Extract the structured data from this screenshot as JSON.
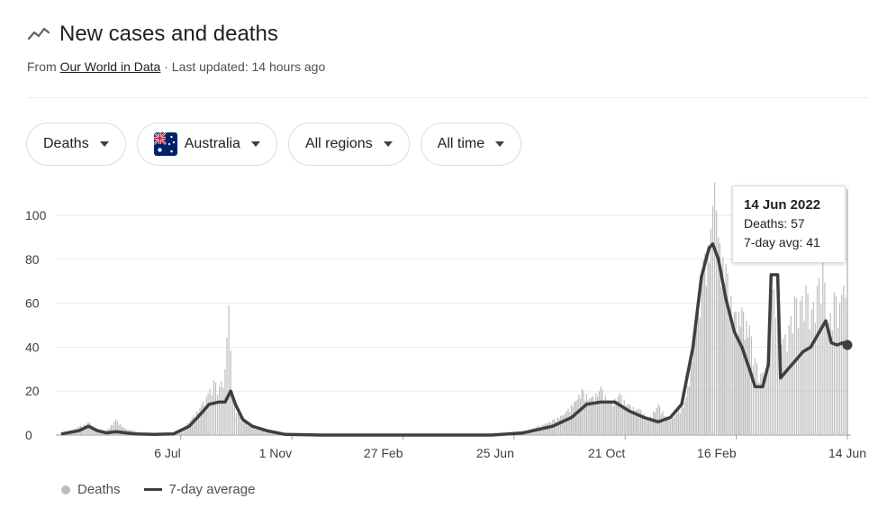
{
  "header": {
    "title": "New cases and deaths",
    "source_prefix": "From",
    "source_name": "Our World in Data",
    "updated": "· Last updated: 14 hours ago",
    "icon": "trending-line-icon"
  },
  "filters": [
    {
      "label": "Deaths"
    },
    {
      "label": "Australia",
      "icon": "australia-flag-icon"
    },
    {
      "label": "All regions"
    },
    {
      "label": "All time"
    }
  ],
  "tooltip": {
    "date": "14 Jun 2022",
    "deaths": "Deaths: 57",
    "avg": "7-day avg: 41"
  },
  "legend": {
    "bars": "Deaths",
    "line": "7-day average"
  },
  "colors": {
    "bars": "#bdbdbd",
    "line": "#3c4043",
    "grid": "#ebebeb"
  },
  "chart_data": {
    "type": "bar",
    "title": "",
    "xlabel": "",
    "ylabel": "",
    "ylim": [
      0,
      114
    ],
    "y_ticks": [
      "0",
      "20",
      "40",
      "60",
      "80",
      "100"
    ],
    "x_ticks": [
      "6 Jul",
      "1 Nov",
      "27 Feb",
      "25 Jun",
      "21 Oct",
      "16 Feb",
      "14 Jun"
    ],
    "x_range": [
      "2020-03-01",
      "2022-06-14"
    ],
    "grid": true,
    "legend_position": "bottom-left",
    "series": [
      {
        "name": "Deaths",
        "type": "bar",
        "points": [
          [
            "2020-03-01",
            1
          ],
          [
            "2020-03-10",
            2
          ],
          [
            "2020-03-20",
            4
          ],
          [
            "2020-03-30",
            6
          ],
          [
            "2020-04-08",
            3
          ],
          [
            "2020-04-18",
            2
          ],
          [
            "2020-04-28",
            7
          ],
          [
            "2020-05-08",
            3
          ],
          [
            "2020-05-18",
            2
          ],
          [
            "2020-05-28",
            0
          ],
          [
            "2020-06-08",
            1
          ],
          [
            "2020-06-18",
            0
          ],
          [
            "2020-06-28",
            1
          ],
          [
            "2020-07-08",
            3
          ],
          [
            "2020-07-18",
            8
          ],
          [
            "2020-07-28",
            14
          ],
          [
            "2020-08-04",
            19
          ],
          [
            "2020-08-10",
            25
          ],
          [
            "2020-08-16",
            22
          ],
          [
            "2020-08-22",
            30
          ],
          [
            "2020-08-26",
            59
          ],
          [
            "2020-08-30",
            18
          ],
          [
            "2020-09-05",
            10
          ],
          [
            "2020-09-12",
            6
          ],
          [
            "2020-09-20",
            4
          ],
          [
            "2020-09-30",
            2
          ],
          [
            "2020-10-10",
            1
          ],
          [
            "2020-10-25",
            0
          ],
          [
            "2021-06-01",
            0
          ],
          [
            "2021-07-05",
            2
          ],
          [
            "2021-07-20",
            4
          ],
          [
            "2021-08-05",
            7
          ],
          [
            "2021-08-20",
            11
          ],
          [
            "2021-09-05",
            21
          ],
          [
            "2021-09-15",
            17
          ],
          [
            "2021-09-25",
            22
          ],
          [
            "2021-10-05",
            15
          ],
          [
            "2021-10-15",
            19
          ],
          [
            "2021-10-25",
            14
          ],
          [
            "2021-11-05",
            12
          ],
          [
            "2021-11-15",
            8
          ],
          [
            "2021-11-25",
            14
          ],
          [
            "2021-12-05",
            8
          ],
          [
            "2021-12-15",
            10
          ],
          [
            "2021-12-25",
            17
          ],
          [
            "2022-01-05",
            55
          ],
          [
            "2022-01-12",
            80
          ],
          [
            "2022-01-20",
            94
          ],
          [
            "2022-01-24",
            115
          ],
          [
            "2022-01-28",
            90
          ],
          [
            "2022-02-05",
            78
          ],
          [
            "2022-02-14",
            56
          ],
          [
            "2022-02-22",
            58
          ],
          [
            "2022-03-02",
            50
          ],
          [
            "2022-03-08",
            35
          ],
          [
            "2022-03-14",
            28
          ],
          [
            "2022-03-20",
            30
          ],
          [
            "2022-03-26",
            66
          ],
          [
            "2022-04-01",
            68
          ],
          [
            "2022-04-07",
            44
          ],
          [
            "2022-04-13",
            50
          ],
          [
            "2022-04-19",
            63
          ],
          [
            "2022-04-25",
            61
          ],
          [
            "2022-05-01",
            68
          ],
          [
            "2022-05-07",
            57
          ],
          [
            "2022-05-13",
            68
          ],
          [
            "2022-05-19",
            79
          ],
          [
            "2022-05-25",
            51
          ],
          [
            "2022-05-31",
            65
          ],
          [
            "2022-06-06",
            60
          ],
          [
            "2022-06-10",
            68
          ],
          [
            "2022-06-14",
            57
          ]
        ]
      },
      {
        "name": "7-day average",
        "type": "line",
        "points": [
          [
            "2020-03-01",
            0.5
          ],
          [
            "2020-03-20",
            2
          ],
          [
            "2020-03-30",
            4
          ],
          [
            "2020-04-08",
            2
          ],
          [
            "2020-04-18",
            1
          ],
          [
            "2020-04-28",
            1.5
          ],
          [
            "2020-05-18",
            0.5
          ],
          [
            "2020-06-08",
            0.3
          ],
          [
            "2020-06-28",
            0.5
          ],
          [
            "2020-07-15",
            4
          ],
          [
            "2020-07-28",
            10
          ],
          [
            "2020-08-05",
            14
          ],
          [
            "2020-08-15",
            15
          ],
          [
            "2020-08-22",
            15
          ],
          [
            "2020-08-28",
            20
          ],
          [
            "2020-09-02",
            14
          ],
          [
            "2020-09-10",
            7
          ],
          [
            "2020-09-20",
            4
          ],
          [
            "2020-10-05",
            2
          ],
          [
            "2020-10-25",
            0.3
          ],
          [
            "2020-12-01",
            0
          ],
          [
            "2021-06-01",
            0
          ],
          [
            "2021-07-05",
            1
          ],
          [
            "2021-08-05",
            4
          ],
          [
            "2021-08-25",
            8
          ],
          [
            "2021-09-10",
            14
          ],
          [
            "2021-09-25",
            15
          ],
          [
            "2021-10-10",
            15
          ],
          [
            "2021-10-25",
            11
          ],
          [
            "2021-11-10",
            8
          ],
          [
            "2021-11-25",
            6
          ],
          [
            "2021-12-08",
            8
          ],
          [
            "2021-12-20",
            14
          ],
          [
            "2022-01-01",
            40
          ],
          [
            "2022-01-10",
            72
          ],
          [
            "2022-01-18",
            85
          ],
          [
            "2022-01-22",
            87
          ],
          [
            "2022-01-28",
            80
          ],
          [
            "2022-02-05",
            62
          ],
          [
            "2022-02-14",
            47
          ],
          [
            "2022-02-22",
            40
          ],
          [
            "2022-03-02",
            30
          ],
          [
            "2022-03-08",
            22
          ],
          [
            "2022-03-16",
            22
          ],
          [
            "2022-03-22",
            32
          ],
          [
            "2022-03-25",
            73
          ],
          [
            "2022-04-01",
            73
          ],
          [
            "2022-04-04",
            26
          ],
          [
            "2022-04-12",
            30
          ],
          [
            "2022-04-20",
            34
          ],
          [
            "2022-04-28",
            38
          ],
          [
            "2022-05-06",
            40
          ],
          [
            "2022-05-14",
            46
          ],
          [
            "2022-05-22",
            52
          ],
          [
            "2022-05-28",
            42
          ],
          [
            "2022-06-03",
            41
          ],
          [
            "2022-06-09",
            42
          ],
          [
            "2022-06-14",
            41
          ]
        ]
      }
    ]
  }
}
